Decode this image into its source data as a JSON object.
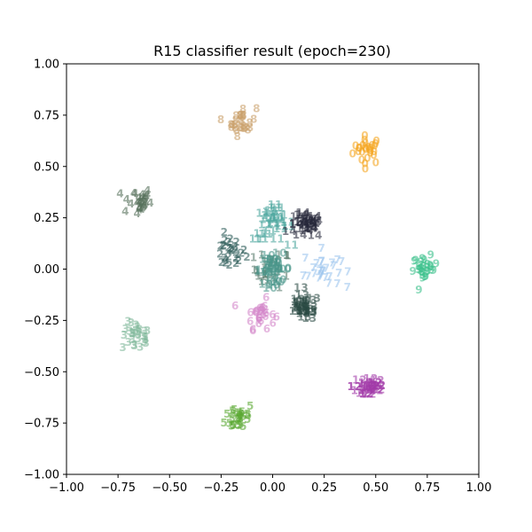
{
  "chart_data": {
    "type": "scatter",
    "title": "R15 classifier result (epoch=230)",
    "xlabel": "",
    "ylabel": "",
    "xlim": [
      -1.0,
      1.0
    ],
    "ylim": [
      -1.0,
      1.0
    ],
    "x_ticks": [
      "−1.00",
      "−0.75",
      "−0.50",
      "−0.25",
      "0.00",
      "0.25",
      "0.50",
      "0.75",
      "1.00"
    ],
    "y_ticks": [
      "−1.00",
      "−0.75",
      "−0.50",
      "−0.25",
      "0.00",
      "0.25",
      "0.50",
      "0.75",
      "1.00"
    ],
    "grid": false,
    "marker": "class-digit text",
    "clusters": [
      {
        "label": "0",
        "color": "#f5a623",
        "center": [
          0.46,
          0.58
        ],
        "spread": 0.035
      },
      {
        "label": "1",
        "color": "#5a7d6e",
        "center": [
          0.0,
          0.0
        ],
        "spread": 0.045
      },
      {
        "label": "2",
        "color": "#2f5d5a",
        "center": [
          -0.21,
          0.08
        ],
        "spread": 0.04
      },
      {
        "label": "3",
        "color": "#7fb79a",
        "center": [
          -0.66,
          -0.33
        ],
        "spread": 0.035
      },
      {
        "label": "4",
        "color": "#55705a",
        "center": [
          -0.66,
          0.33
        ],
        "spread": 0.035
      },
      {
        "label": "5",
        "color": "#5aa832",
        "center": [
          -0.16,
          -0.72
        ],
        "spread": 0.035
      },
      {
        "label": "6",
        "color": "#d487c9",
        "center": [
          -0.06,
          -0.22
        ],
        "spread": 0.035
      },
      {
        "label": "7",
        "color": "#9fc7ee",
        "center": [
          0.24,
          0.0
        ],
        "spread": 0.045
      },
      {
        "label": "8",
        "color": "#c9a06b",
        "center": [
          -0.15,
          0.72
        ],
        "spread": 0.035
      },
      {
        "label": "9",
        "color": "#3cc28c",
        "center": [
          0.74,
          0.0
        ],
        "spread": 0.03
      },
      {
        "label": "10",
        "color": "#4a968a",
        "center": [
          0.0,
          0.0
        ],
        "spread": 0.035
      },
      {
        "label": "11",
        "color": "#4ca69e",
        "center": [
          0.0,
          0.22
        ],
        "spread": 0.04
      },
      {
        "label": "12",
        "color": "#a23aa8",
        "center": [
          0.47,
          -0.57
        ],
        "spread": 0.035
      },
      {
        "label": "13",
        "color": "#2a4a42",
        "center": [
          0.15,
          -0.19
        ],
        "spread": 0.03
      },
      {
        "label": "14",
        "color": "#26283a",
        "center": [
          0.16,
          0.21
        ],
        "spread": 0.03
      }
    ]
  }
}
